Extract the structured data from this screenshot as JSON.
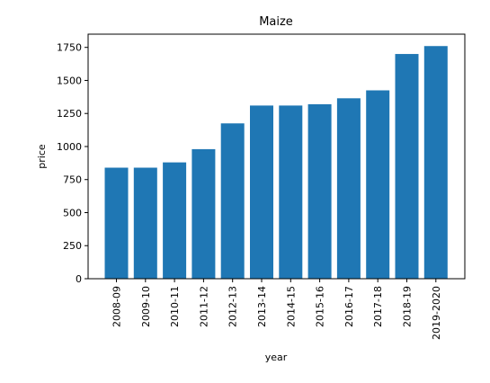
{
  "chart_data": {
    "type": "bar",
    "title": "Maize",
    "xlabel": "year",
    "ylabel": "price",
    "categories": [
      "2008-09",
      "2009-10",
      "2010-11",
      "2011-12",
      "2012-13",
      "2013-14",
      "2014-15",
      "2015-16",
      "2016-17",
      "2017-18",
      "2018-19",
      "2019-2020"
    ],
    "values": [
      840,
      840,
      880,
      980,
      1175,
      1310,
      1310,
      1320,
      1365,
      1425,
      1700,
      1760
    ],
    "ylim": [
      0,
      1850
    ],
    "yticks": [
      0,
      250,
      500,
      750,
      1000,
      1250,
      1500,
      1750
    ],
    "ytick_labels": [
      "0",
      "250",
      "500",
      "750",
      "1000",
      "1250",
      "1500",
      "1750"
    ],
    "bar_color": "#1f77b4",
    "grid": false,
    "legend": "none"
  }
}
